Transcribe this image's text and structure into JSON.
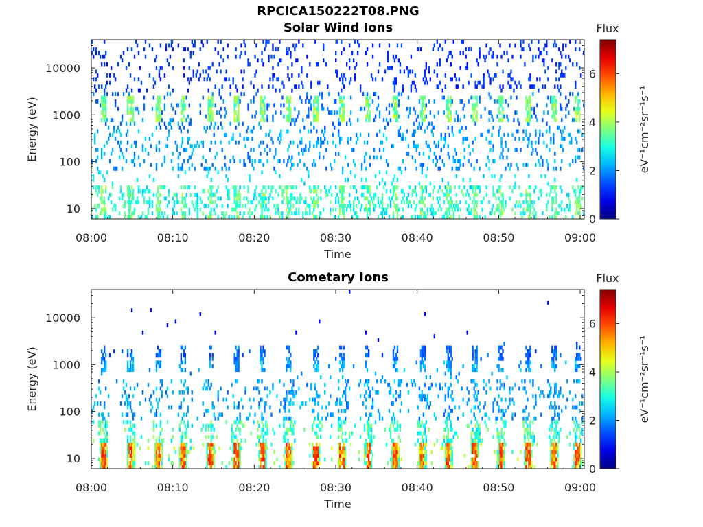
{
  "figure_title": "RPCICA150222T08.PNG",
  "chart_data": [
    {
      "type": "heatmap",
      "title": "Solar Wind Ions",
      "xlabel": "Time",
      "ylabel": "Energy (eV)",
      "x_ticks": [
        "08:00",
        "08:10",
        "08:20",
        "08:30",
        "08:40",
        "08:50",
        "09:00"
      ],
      "x_range": [
        "08:00",
        "09:00"
      ],
      "y_scale": "log",
      "y_ticks": [
        10,
        100,
        1000,
        10000
      ],
      "y_range": [
        6,
        40000
      ],
      "colorbar": {
        "label": "Flux",
        "unit": "eV⁻¹cm⁻²sr⁻¹s⁻¹",
        "range": [
          0,
          7.4
        ],
        "ticks": [
          0,
          2,
          4,
          6
        ],
        "colormap": "jet"
      },
      "description_of_features": {
        "band_energies_eV": [
          2000,
          800
        ],
        "band_flux": 3.5,
        "background_flux_high_energy": 1.2,
        "low_energy_flux": [
          2.5,
          3.8
        ]
      }
    },
    {
      "type": "heatmap",
      "title": "Cometary Ions",
      "xlabel": "Time",
      "ylabel": "Energy (eV)",
      "x_ticks": [
        "08:00",
        "08:10",
        "08:20",
        "08:30",
        "08:40",
        "08:50",
        "09:00"
      ],
      "x_range": [
        "08:00",
        "09:00"
      ],
      "y_scale": "log",
      "y_ticks": [
        10,
        100,
        1000,
        10000
      ],
      "y_range": [
        6,
        40000
      ],
      "colorbar": {
        "label": "Flux",
        "unit": "eV⁻¹cm⁻²sr⁻¹s⁻¹",
        "range": [
          0,
          7.4
        ],
        "ticks": [
          0,
          2,
          4,
          6
        ],
        "colormap": "jet"
      },
      "description_of_features": {
        "band_energies_eV": [
          2000,
          800
        ],
        "band_flux": 2.0,
        "low_energy_peak_flux": 6.3
      }
    }
  ],
  "pulse_times_min": [
    1.5,
    4.8,
    8.2,
    11.3,
    14.6,
    17.8,
    21.0,
    24.2,
    27.6,
    30.8,
    34.0,
    37.3,
    40.6,
    43.8,
    47.1,
    50.3,
    53.6,
    56.8,
    59.7
  ]
}
